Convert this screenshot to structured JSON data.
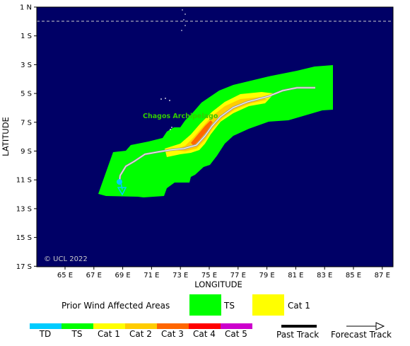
{
  "map": {
    "place_label": "Chagos Archipelago",
    "copyright": "© UCL 2022",
    "x_axis_title": "LONGITUDE",
    "y_axis_title": "LATITUDE",
    "lon_ticks": [
      "65 E",
      "67 E",
      "69 E",
      "71 E",
      "73 E",
      "75 E",
      "77 E",
      "79 E",
      "81 E",
      "83 E",
      "85 E",
      "87 E"
    ],
    "lat_ticks": [
      "1 N",
      "1 S",
      "3 S",
      "5 S",
      "7 S",
      "9 S",
      "11 S",
      "13 S",
      "15 S",
      "17 S"
    ],
    "colors": {
      "ocean": "#000066",
      "ts": "#00ff00",
      "cat1": "#ffff00",
      "cat2": "#ffcc00",
      "cat3": "#ff6600",
      "td": "#00ccff"
    },
    "track_icon": "storm-position-icon"
  },
  "legend": {
    "prior_label": "Prior Wind Affected Areas",
    "swatches": [
      {
        "label": "TS",
        "color": "#00ff00"
      },
      {
        "label": "Cat 1",
        "color": "#ffff00"
      }
    ],
    "scale": [
      {
        "label": "TD",
        "color": "#00ccff"
      },
      {
        "label": "TS",
        "color": "#00ff00"
      },
      {
        "label": "Cat 1",
        "color": "#ffff00"
      },
      {
        "label": "Cat 2",
        "color": "#ffcc00"
      },
      {
        "label": "Cat 3",
        "color": "#ff6600"
      },
      {
        "label": "Cat 4",
        "color": "#ff0000"
      },
      {
        "label": "Cat 5",
        "color": "#cc00cc"
      }
    ],
    "past_track_label": "Past Track",
    "forecast_track_label": "Forecast Track"
  }
}
